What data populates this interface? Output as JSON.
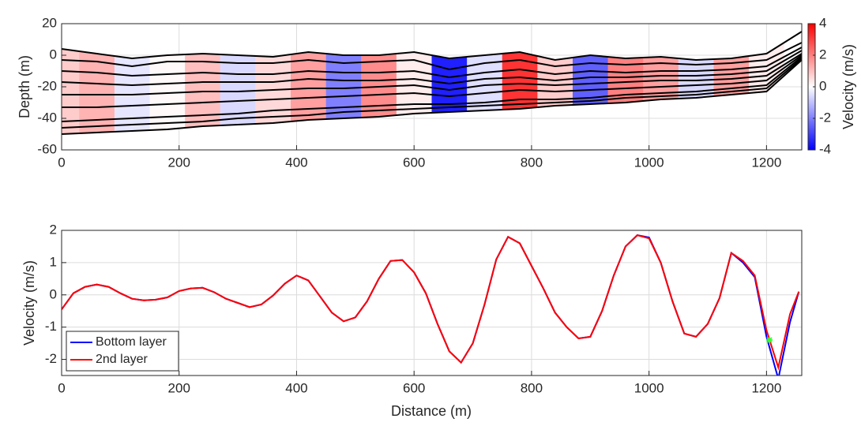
{
  "chart_data": [
    {
      "type": "section",
      "ylabel": "Depth (m)",
      "xlim": [
        0,
        1260
      ],
      "xticks": [
        0,
        200,
        400,
        600,
        800,
        1000,
        1200
      ],
      "ylim": [
        -60,
        20
      ],
      "yticks": [
        -60,
        -40,
        -20,
        0,
        20
      ],
      "grid": true,
      "x": [
        0,
        60,
        120,
        180,
        240,
        300,
        360,
        420,
        480,
        540,
        600,
        660,
        720,
        780,
        840,
        900,
        960,
        1020,
        1080,
        1140,
        1200,
        1260
      ],
      "velocity": [
        0.8,
        1.2,
        -0.4,
        0.1,
        1.0,
        -0.6,
        0.6,
        1.5,
        -2.0,
        1.8,
        0.3,
        -3.5,
        -0.5,
        3.2,
        0.8,
        -2.5,
        2.0,
        1.5,
        -0.6,
        1.5,
        0.3,
        0
      ],
      "series": [
        {
          "color": "#000000",
          "values": [
            4,
            1,
            -2,
            0,
            1,
            0,
            -1,
            2,
            0,
            0,
            2,
            -2,
            0,
            2,
            -3,
            0,
            -2,
            -1,
            -3,
            -2,
            1,
            15
          ]
        },
        {
          "color": "#000000",
          "values": [
            -3,
            -4,
            -7,
            -4,
            -4,
            -5,
            -5,
            -3,
            -5,
            -4,
            -3,
            -9,
            -5,
            -3,
            -7,
            -5,
            -6,
            -5,
            -6,
            -5,
            -3,
            8
          ]
        },
        {
          "color": "#000000",
          "values": [
            -10,
            -11,
            -13,
            -12,
            -11,
            -12,
            -12,
            -10,
            -11,
            -11,
            -10,
            -14,
            -11,
            -9,
            -12,
            -10,
            -11,
            -10,
            -10,
            -9,
            -7,
            5
          ]
        },
        {
          "color": "#000000",
          "values": [
            -17,
            -18,
            -19,
            -18,
            -17,
            -17,
            -17,
            -15,
            -16,
            -16,
            -15,
            -18,
            -15,
            -14,
            -16,
            -14,
            -14,
            -13,
            -13,
            -12,
            -10,
            3
          ]
        },
        {
          "color": "#000000",
          "values": [
            -25,
            -25,
            -25,
            -24,
            -23,
            -23,
            -22,
            -21,
            -21,
            -20,
            -19,
            -22,
            -19,
            -18,
            -19,
            -18,
            -17,
            -16,
            -16,
            -15,
            -13,
            1
          ]
        },
        {
          "color": "#000000",
          "values": [
            -33,
            -33,
            -32,
            -31,
            -30,
            -29,
            -28,
            -27,
            -26,
            -25,
            -24,
            -26,
            -24,
            -22,
            -23,
            -22,
            -21,
            -20,
            -19,
            -18,
            -16,
            0
          ]
        },
        {
          "color": "#000000",
          "values": [
            -42,
            -41,
            -40,
            -39,
            -38,
            -37,
            -35,
            -34,
            -33,
            -32,
            -31,
            -31,
            -30,
            -28,
            -28,
            -27,
            -25,
            -24,
            -23,
            -21,
            -19,
            -1
          ]
        },
        {
          "color": "#000000",
          "values": [
            -46,
            -45,
            -44,
            -43,
            -42,
            -40,
            -39,
            -38,
            -36,
            -35,
            -34,
            -33,
            -32,
            -31,
            -30,
            -29,
            -27,
            -26,
            -25,
            -23,
            -21,
            -2
          ]
        },
        {
          "color": "#000000",
          "values": [
            -50,
            -49,
            -48,
            -47,
            -45,
            -44,
            -43,
            -41,
            -40,
            -39,
            -37,
            -36,
            -35,
            -34,
            -32,
            -31,
            -30,
            -28,
            -27,
            -25,
            -23,
            -3
          ]
        }
      ],
      "colorbar": {
        "label": "Velocity (m/s)",
        "lim": [
          -4,
          4
        ],
        "ticks": [
          -4,
          -2,
          0,
          2,
          4
        ],
        "colors": [
          "#0000ff",
          "#ffffff",
          "#ff0000"
        ]
      }
    },
    {
      "type": "line",
      "xlabel": "Distance (m)",
      "ylabel": "Velocity (m/s)",
      "xlim": [
        0,
        1260
      ],
      "xticks": [
        0,
        200,
        400,
        600,
        800,
        1000,
        1200
      ],
      "ylim": [
        -2.5,
        2
      ],
      "yticks": [
        -2,
        -1,
        0,
        1,
        2
      ],
      "grid": true,
      "legend": "lower-left",
      "x": [
        0,
        20,
        40,
        60,
        80,
        100,
        120,
        140,
        160,
        180,
        200,
        220,
        240,
        260,
        280,
        300,
        320,
        340,
        360,
        380,
        400,
        420,
        440,
        460,
        480,
        500,
        520,
        540,
        560,
        580,
        600,
        620,
        640,
        660,
        680,
        700,
        720,
        740,
        760,
        780,
        800,
        820,
        840,
        860,
        880,
        900,
        920,
        940,
        960,
        980,
        1000,
        1020,
        1040,
        1060,
        1080,
        1100,
        1120,
        1140,
        1160,
        1180,
        1200,
        1220,
        1240,
        1255
      ],
      "series": [
        {
          "name": "Bottom layer",
          "color": "#0000ff",
          "values": [
            -0.45,
            0.05,
            0.25,
            0.32,
            0.25,
            0.05,
            -0.12,
            -0.17,
            -0.15,
            -0.08,
            0.12,
            0.2,
            0.22,
            0.08,
            -0.12,
            -0.25,
            -0.38,
            -0.3,
            -0.02,
            0.35,
            0.6,
            0.45,
            -0.05,
            -0.55,
            -0.82,
            -0.7,
            -0.2,
            0.5,
            1.05,
            1.08,
            0.7,
            0.05,
            -0.9,
            -1.75,
            -2.1,
            -1.5,
            -0.3,
            1.1,
            1.8,
            1.6,
            0.9,
            0.2,
            -0.55,
            -1.0,
            -1.35,
            -1.3,
            -0.5,
            0.6,
            1.5,
            1.85,
            1.78,
            1.0,
            -0.2,
            -1.2,
            -1.3,
            -0.9,
            -0.1,
            1.3,
            1.0,
            0.55,
            -1.3,
            -2.6,
            -0.85,
            0.1
          ]
        },
        {
          "name": "2nd layer",
          "color": "#ff0000",
          "values": [
            -0.45,
            0.05,
            0.25,
            0.32,
            0.25,
            0.05,
            -0.12,
            -0.17,
            -0.15,
            -0.08,
            0.12,
            0.2,
            0.22,
            0.08,
            -0.12,
            -0.25,
            -0.38,
            -0.3,
            -0.02,
            0.35,
            0.6,
            0.45,
            -0.05,
            -0.55,
            -0.82,
            -0.7,
            -0.2,
            0.5,
            1.05,
            1.08,
            0.7,
            0.05,
            -0.9,
            -1.75,
            -2.1,
            -1.5,
            -0.3,
            1.1,
            1.8,
            1.6,
            0.9,
            0.2,
            -0.55,
            -1.0,
            -1.35,
            -1.3,
            -0.5,
            0.6,
            1.5,
            1.85,
            1.75,
            1.0,
            -0.2,
            -1.2,
            -1.3,
            -0.9,
            -0.1,
            1.3,
            1.05,
            0.6,
            -1.1,
            -2.25,
            -0.6,
            0.1
          ]
        }
      ],
      "marker": {
        "x": 1205,
        "y": -1.4,
        "color": "#33ff33"
      }
    }
  ]
}
